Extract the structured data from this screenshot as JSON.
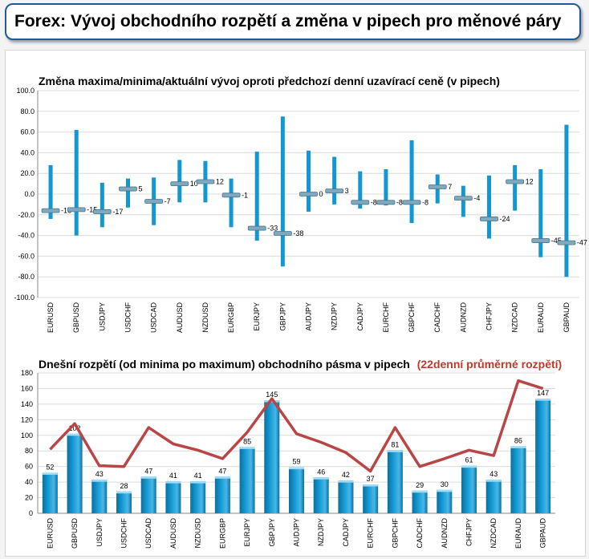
{
  "banner": {
    "title": "Forex: Vývoj obchodního rozpětí a změna v pipech pro měnové páry"
  },
  "colors": {
    "bar": "#1297d2",
    "line": "#b94544",
    "grid": "#dcdcdc",
    "banner_border": "#1f5a9e"
  },
  "chart_data": [
    {
      "type": "range",
      "title": "Změna maxima/minima/aktuální vývoj oproti předchozí denní uzavírací ceně (v pipech)",
      "ylim": [
        -100,
        100
      ],
      "yticks": [
        "100.0",
        "80.0",
        "60.0",
        "40.0",
        "20.0",
        "0.0",
        "-20.0",
        "-40.0",
        "-60.0",
        "-80.0",
        "-100.0"
      ],
      "grid": true,
      "categories": [
        "EURUSD",
        "GBPUSD",
        "USDJPY",
        "USDCHF",
        "USDCAD",
        "AUDUSD",
        "NZDUSD",
        "EURGBP",
        "EURJPY",
        "GBPJPY",
        "AUDJPY",
        "NZDJPY",
        "CADJPY",
        "EURCHF",
        "GBPCHF",
        "CADCHF",
        "AUDNZD",
        "CHFJPY",
        "NZDCAD",
        "EURAUD",
        "GBPAUD"
      ],
      "high": [
        28,
        62,
        11,
        15,
        16,
        33,
        32,
        15,
        41,
        75,
        42,
        36,
        22,
        24,
        52,
        19,
        8,
        18,
        28,
        24,
        67
      ],
      "low": [
        -24,
        -40,
        -32,
        -13,
        -30,
        -8,
        -8,
        -32,
        -45,
        -70,
        -17,
        -10,
        -14,
        -11,
        -28,
        -9,
        -22,
        -43,
        -16,
        -61,
        -80
      ],
      "current": [
        -16,
        -15,
        -17,
        5,
        -7,
        10,
        12,
        -1,
        -33,
        -38,
        0,
        3,
        -8,
        -8,
        -8,
        7,
        -4,
        -24,
        12,
        -45,
        -47
      ],
      "labels": [
        "-16",
        "-15",
        "-17",
        "5",
        "-7",
        "10",
        "12",
        "-1",
        "-33",
        "-38",
        "0",
        "3",
        "-8",
        "-8",
        "-8",
        "7",
        "-4",
        "-24",
        "12",
        "-45",
        "-47"
      ]
    },
    {
      "type": "bar+line",
      "title": "Dnešní rozpětí (od minima po maximum) obchodního pásma v pipech",
      "title_highlight": "(22denní průměrné rozpětí)",
      "ylim": [
        0,
        180
      ],
      "yticks": [
        "180",
        "160",
        "140",
        "120",
        "100",
        "80",
        "60",
        "40",
        "20",
        "0"
      ],
      "grid": true,
      "categories": [
        "EURUSD",
        "GBPUSD",
        "USDJPY",
        "USDCHF",
        "USDCAD",
        "AUDUSD",
        "NZDUSD",
        "EURGBP",
        "EURJPY",
        "GBPJPY",
        "AUDJPY",
        "NZDJPY",
        "CADJPY",
        "EURCHF",
        "GBPCHF",
        "CADCHF",
        "AUDNZD",
        "CHFJPY",
        "NZDCAD",
        "EURAUD",
        "GBPAUD"
      ],
      "series": [
        {
          "values": [
            52,
            102,
            43,
            28,
            47,
            41,
            41,
            47,
            85,
            145,
            59,
            46,
            42,
            37,
            81,
            29,
            30,
            61,
            43,
            86,
            147
          ]
        },
        {
          "name": "22denní průměrné rozpětí",
          "values": [
            82,
            115,
            61,
            60,
            110,
            89,
            81,
            70,
            104,
            147,
            102,
            91,
            78,
            54,
            110,
            60,
            70,
            81,
            74,
            170,
            160
          ]
        }
      ],
      "labels": [
        "52",
        "102",
        "43",
        "28",
        "47",
        "41",
        "41",
        "47",
        "85",
        "145",
        "59",
        "46",
        "42",
        "37",
        "81",
        "29",
        "30",
        "61",
        "43",
        "86",
        "147"
      ]
    }
  ]
}
